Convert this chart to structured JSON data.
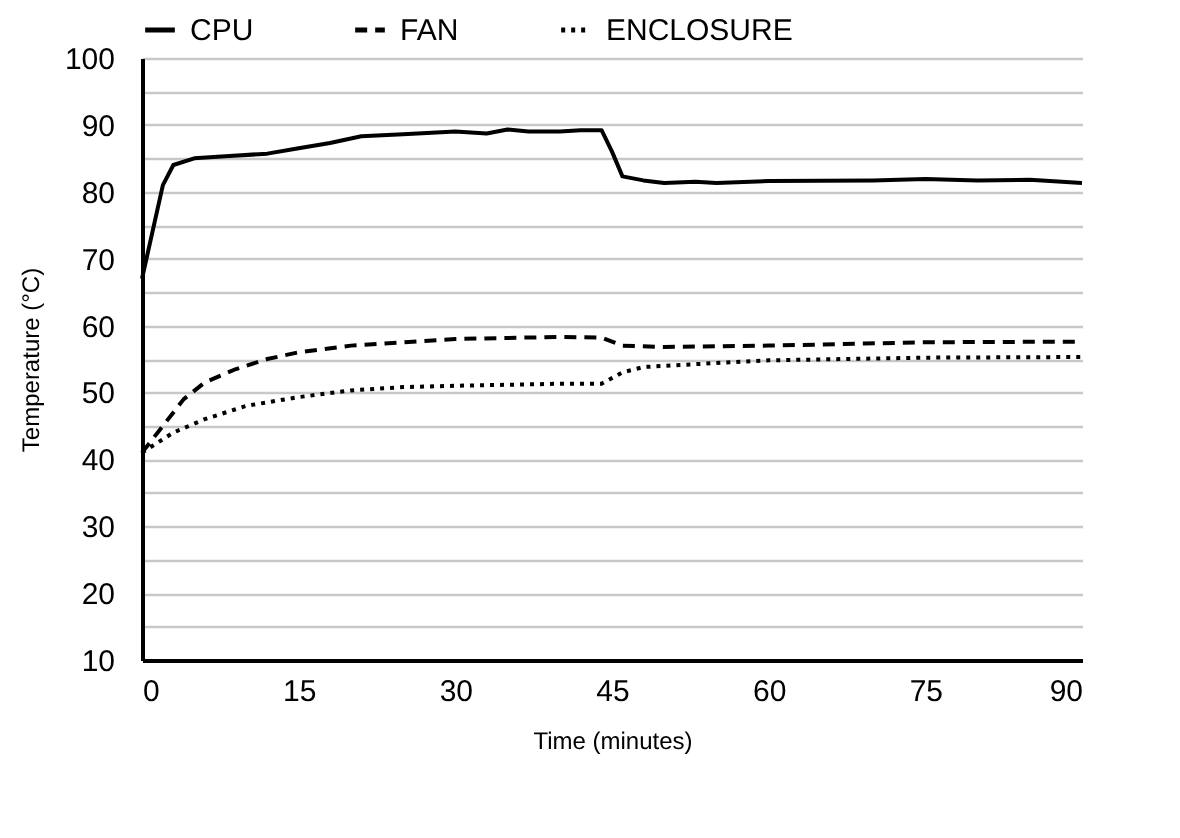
{
  "chart_data": {
    "type": "line",
    "xlabel": "Time (minutes)",
    "ylabel": "Temperature (°C)",
    "xlim": [
      0,
      90
    ],
    "xticks": [
      0,
      15,
      30,
      45,
      60,
      75,
      90
    ],
    "ylim": [
      10,
      100
    ],
    "yticks": [
      10,
      {
        "value": 15,
        "label": null
      },
      20,
      {
        "value": 25,
        "label": null
      },
      30,
      {
        "value": 35,
        "label": null
      },
      40,
      {
        "value": 45,
        "label": null
      },
      50,
      {
        "value": 55,
        "label": null
      },
      60,
      {
        "value": 65,
        "label": null
      },
      70,
      {
        "value": 75,
        "label": null
      },
      80,
      {
        "value": 85,
        "label": null
      },
      90,
      {
        "value": 95,
        "label": null
      },
      100
    ],
    "grid": "y",
    "legend": "top",
    "marker": "none",
    "series": [
      {
        "name": "CPU",
        "color": "#000000",
        "line_style": "solid",
        "x": [
          0,
          1,
          2,
          3,
          5,
          8,
          12,
          15,
          18,
          21,
          25,
          30,
          33,
          35,
          37,
          40,
          42,
          44,
          45,
          46,
          48,
          50,
          53,
          55,
          60,
          70,
          75,
          80,
          85,
          90
        ],
        "values": [
          67,
          74,
          81,
          84,
          85,
          85.3,
          85.7,
          86.5,
          87.3,
          88.3,
          88.6,
          89,
          88.7,
          89.3,
          89,
          89,
          89.2,
          89.2,
          86,
          82.3,
          81.7,
          81.3,
          81.5,
          81.3,
          81.6,
          81.7,
          81.9,
          81.7,
          81.8,
          81.3
        ]
      },
      {
        "name": "FAN",
        "color": "#000000",
        "line_style": "dashed",
        "x": [
          0,
          2,
          4,
          6,
          9,
          12,
          15,
          20,
          25,
          30,
          40,
          44,
          46,
          50,
          60,
          75,
          90
        ],
        "values": [
          41,
          45,
          49,
          51.5,
          53.5,
          55,
          56,
          57,
          57.5,
          58,
          58.3,
          58.2,
          57,
          56.8,
          57,
          57.5,
          57.6
        ]
      },
      {
        "name": "ENCLOSURE",
        "color": "#000000",
        "line_style": "dotted",
        "x": [
          0,
          3,
          6,
          10,
          15,
          20,
          25,
          30,
          40,
          44,
          46,
          48,
          55,
          60,
          75,
          90
        ],
        "values": [
          41,
          44,
          46,
          48,
          49.3,
          50.3,
          50.8,
          51,
          51.3,
          51.3,
          53,
          53.8,
          54.4,
          54.8,
          55.2,
          55.3
        ]
      }
    ]
  }
}
